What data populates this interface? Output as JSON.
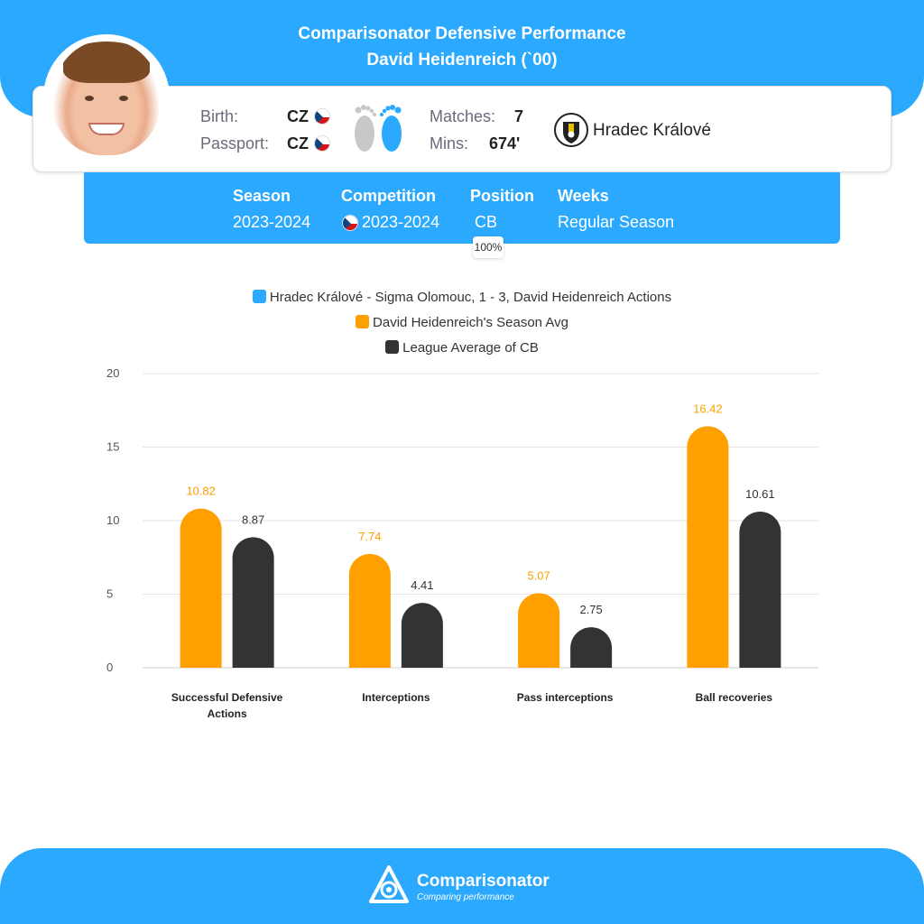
{
  "header": {
    "title": "Comparisonator Defensive Performance",
    "player_line": "David Heidenreich (`00)"
  },
  "player": {
    "birth_label": "Birth:",
    "birth_value": "CZ",
    "passport_label": "Passport:",
    "passport_value": "CZ",
    "matches_label": "Matches:",
    "matches_value": "7",
    "mins_label": "Mins:",
    "mins_value": "674'",
    "club_name": "Hradec Králové"
  },
  "info": {
    "season_label": "Season",
    "season_value": "2023-2024",
    "competition_label": "Competition",
    "competition_value": "2023-2024",
    "position_label": "Position",
    "position_value": "CB",
    "position_pct": "100%",
    "weeks_label": "Weeks",
    "weeks_value": "Regular Season"
  },
  "colors": {
    "brand_blue": "#2aa9ff",
    "season_avg": "#ff9f00",
    "league_avg": "#333333"
  },
  "chart_data": {
    "type": "bar",
    "categories": [
      [
        "Successful Defensive",
        "Actions"
      ],
      [
        "Interceptions"
      ],
      [
        "Pass interceptions"
      ],
      [
        "Ball recoveries"
      ]
    ],
    "series": [
      {
        "name": "Hradec Králové - Sigma Olomouc, 1 - 3, David Heidenreich Actions",
        "color": "#2aa9ff",
        "values": [
          null,
          null,
          null,
          null
        ]
      },
      {
        "name": "David Heidenreich's Season Avg",
        "color": "#ff9f00",
        "values": [
          10.82,
          7.74,
          5.07,
          16.42
        ]
      },
      {
        "name": "League Average of CB",
        "color": "#333333",
        "values": [
          8.87,
          4.41,
          2.75,
          10.61
        ]
      }
    ],
    "ylim": [
      0,
      20
    ],
    "yticks": [
      "20",
      "15",
      "10",
      "5",
      "0"
    ],
    "grid": true,
    "legend": "top-center"
  },
  "footer": {
    "brand": "Comparisonator",
    "tagline": "Comparing performance"
  }
}
